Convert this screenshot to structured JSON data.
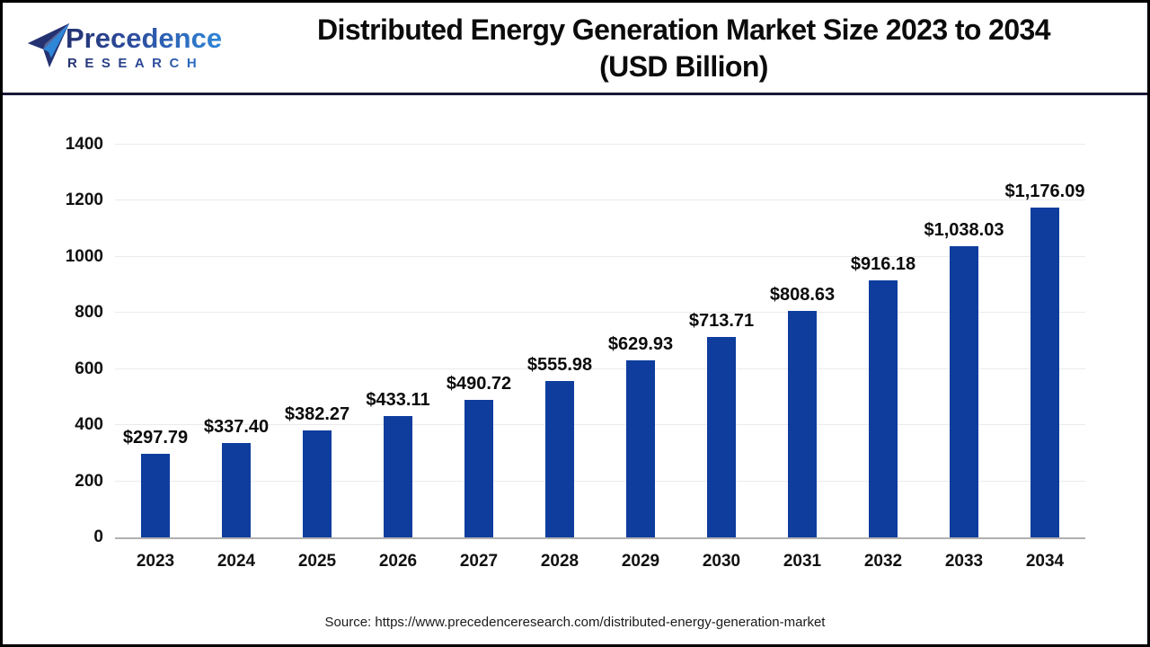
{
  "logo": {
    "line1": "Precedence",
    "line2": "RESEARCH",
    "colors": {
      "navy": "#243272",
      "blue": "#2e86d8"
    }
  },
  "header": {
    "title_line1": "Distributed Energy Generation Market Size 2023 to 2034",
    "title_line2": "(USD Billion)"
  },
  "chart_data": {
    "type": "bar",
    "title": "Distributed Energy Generation Market Size 2023 to 2034 (USD Billion)",
    "unit": "USD Billion",
    "categories": [
      "2023",
      "2024",
      "2025",
      "2026",
      "2027",
      "2028",
      "2029",
      "2030",
      "2031",
      "2032",
      "2033",
      "2034"
    ],
    "values": [
      297.79,
      337.4,
      382.27,
      433.11,
      490.72,
      555.98,
      629.93,
      713.71,
      808.63,
      916.18,
      1038.03,
      1176.09
    ],
    "labels": [
      "$297.79",
      "$337.40",
      "$382.27",
      "$433.11",
      "$490.72",
      "$555.98",
      "$629.93",
      "$713.71",
      "$808.63",
      "$916.18",
      "$1,038.03",
      "$1,176.09"
    ],
    "yticks": [
      0,
      200,
      400,
      600,
      800,
      1000,
      1200,
      1400
    ],
    "ylim": [
      0,
      1400
    ],
    "xlabel": "",
    "ylabel": "",
    "grid": true,
    "legend": false
  },
  "colors": {
    "bar": "#0E3D9E",
    "separator": "#1A1836",
    "grid": "#ebebeb",
    "axis": "#b0b0b0"
  },
  "footer": {
    "source": "Source: https://www.precedenceresearch.com/distributed-energy-generation-market"
  }
}
